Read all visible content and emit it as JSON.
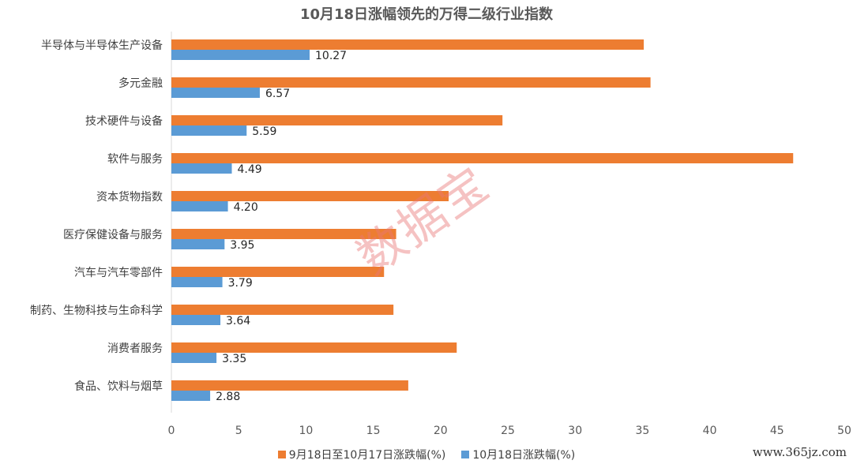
{
  "chart_data": {
    "type": "bar",
    "orientation": "horizontal",
    "title": "10月18日涨幅领先的万得二级行业指数",
    "categories": [
      "半导体与半导体生产设备",
      "多元金融",
      "技术硬件与设备",
      "软件与服务",
      "资本货物指数",
      "医疗保健设备与服务",
      "汽车与汽车零部件",
      "制药、生物科技与生命科学",
      "消费者服务",
      "食品、饮料与烟草"
    ],
    "series": [
      {
        "name": "9月18日至10月17日涨跌幅(%)",
        "color": "#ED7D31",
        "values": [
          35.1,
          35.6,
          24.6,
          46.2,
          20.6,
          16.7,
          15.8,
          16.5,
          21.2,
          17.6
        ],
        "labels": [
          "",
          "",
          "",
          "",
          "",
          "",
          "",
          "",
          "",
          ""
        ]
      },
      {
        "name": "10月18日涨跌幅(%)",
        "color": "#5B9BD5",
        "values": [
          10.27,
          6.57,
          5.59,
          4.49,
          4.2,
          3.95,
          3.79,
          3.64,
          3.35,
          2.88
        ],
        "labels": [
          "10.27",
          "6.57",
          "5.59",
          "4.49",
          "4.20",
          "3.95",
          "3.79",
          "3.64",
          "3.35",
          "2.88"
        ]
      }
    ],
    "xlim": [
      0,
      50
    ],
    "xticks": [
      "0",
      "5",
      "10",
      "15",
      "20",
      "25",
      "30",
      "35",
      "40",
      "45",
      "50"
    ],
    "xlabel": "",
    "ylabel": "",
    "grid": false,
    "legend_position": "bottom"
  },
  "watermark": "数据宝",
  "site_mark": "www.365jz.com"
}
